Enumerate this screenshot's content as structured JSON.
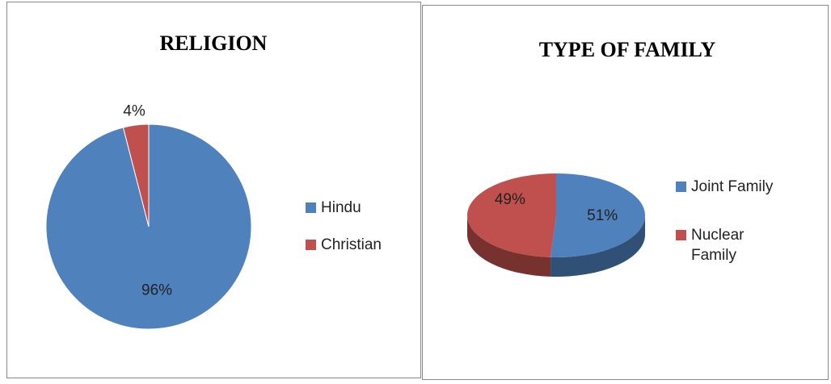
{
  "chart_data": [
    {
      "type": "pie",
      "title": "RELIGION",
      "categories": [
        "Hindu",
        "Christian"
      ],
      "values": [
        96,
        4
      ],
      "value_labels": [
        "96%",
        "4%"
      ],
      "colors": [
        "#4f81bd",
        "#c0504d"
      ],
      "legend": "right"
    },
    {
      "type": "pie3d",
      "title": "TYPE OF FAMILY",
      "categories": [
        "Joint Family",
        "Nuclear Family"
      ],
      "values": [
        51,
        49
      ],
      "value_labels": [
        "51%",
        "49%"
      ],
      "colors": [
        "#4f81bd",
        "#c0504d"
      ],
      "legend": "right"
    }
  ]
}
